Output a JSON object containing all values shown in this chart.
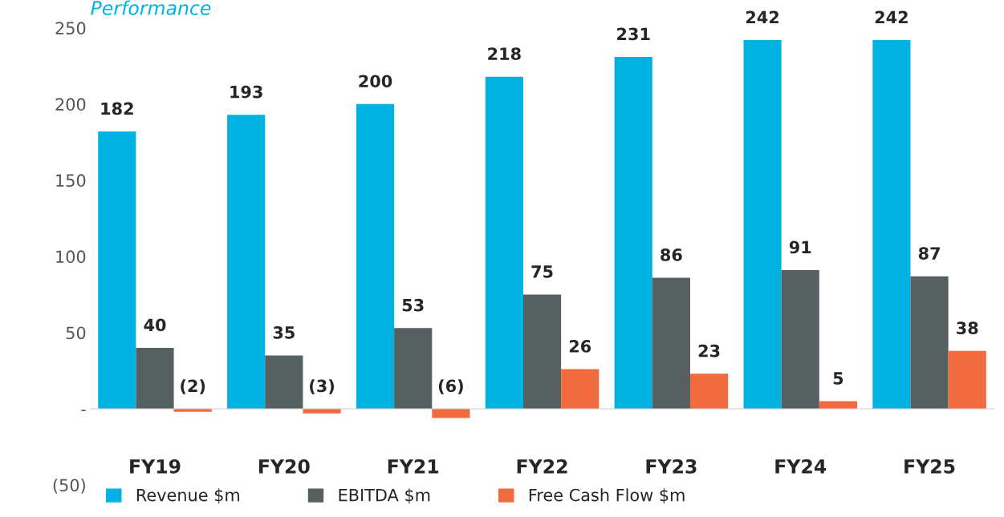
{
  "chart_data": {
    "type": "bar",
    "title": "Performance",
    "categories": [
      "FY19",
      "FY20",
      "FY21",
      "FY22",
      "FY23",
      "FY24",
      "FY25"
    ],
    "series": [
      {
        "name": "Revenue $m",
        "color": "#00b2e2",
        "values": [
          182,
          193,
          200,
          218,
          231,
          242,
          242
        ],
        "value_labels": [
          "182",
          "193",
          "200",
          "218",
          "231",
          "242",
          "242"
        ]
      },
      {
        "name": "EBITDA $m",
        "color": "#576060",
        "values": [
          40,
          35,
          53,
          75,
          86,
          91,
          87
        ],
        "value_labels": [
          "40",
          "35",
          "53",
          "75",
          "86",
          "91",
          "87"
        ]
      },
      {
        "name": "Free Cash Flow $m",
        "color": "#f26b3f",
        "values": [
          -2,
          -3,
          -6,
          26,
          23,
          5,
          38
        ],
        "value_labels": [
          "(2)",
          "(3)",
          "(6)",
          "26",
          "23",
          "5",
          "38"
        ]
      }
    ],
    "ylim": [
      -50,
      250
    ],
    "yticks": [
      {
        "value": -50,
        "label": "(50)"
      },
      {
        "value": 0,
        "label": "-"
      },
      50,
      100,
      150,
      200,
      250
    ],
    "legend": "bottom left"
  }
}
